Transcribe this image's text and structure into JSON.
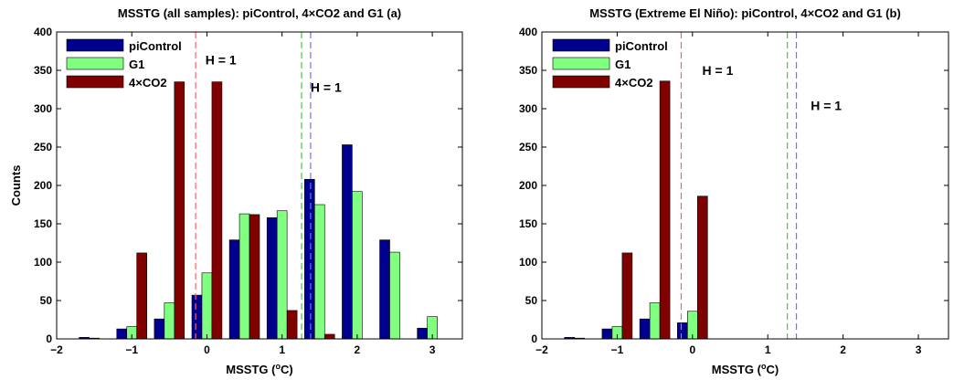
{
  "chart_data": [
    {
      "type": "bar",
      "title": "MSSTG (all samples): piControl, 4×CO2 and G1 (a)",
      "xlabel": "MSSTG (°C)",
      "ylabel": "Counts",
      "xlim": [
        -2,
        3.4
      ],
      "ylim": [
        0,
        400
      ],
      "xticks": [
        -2,
        -1,
        0,
        1,
        2,
        3
      ],
      "yticks": [
        0,
        50,
        100,
        150,
        200,
        250,
        300,
        350,
        400
      ],
      "legend": "top-left",
      "bin_width": 0.5,
      "series": [
        {
          "name": "piControl",
          "color": "#00008f",
          "x": [
            -1.5,
            -1.0,
            -0.5,
            0.0,
            0.5,
            1.0,
            1.5,
            2.0,
            2.5,
            3.0
          ],
          "values": [
            2,
            13,
            26,
            57,
            129,
            158,
            208,
            253,
            129,
            14
          ]
        },
        {
          "name": "G1",
          "color": "#80ff80",
          "x": [
            -1.5,
            -1.0,
            -0.5,
            0.0,
            0.5,
            1.0,
            1.5,
            2.0,
            2.5,
            3.0
          ],
          "values": [
            1,
            16,
            47,
            86,
            163,
            167,
            175,
            192,
            113,
            29
          ]
        },
        {
          "name": "4×CO2",
          "color": "#800000",
          "x": [
            -1.5,
            -1.0,
            -0.5,
            0.0,
            0.5,
            1.0,
            1.5,
            2.0,
            2.5,
            3.0
          ],
          "values": [
            0,
            112,
            335,
            335,
            162,
            37,
            6,
            0,
            0,
            0
          ]
        }
      ],
      "vlines": [
        {
          "x": -0.15,
          "color": "#ff6060"
        },
        {
          "x": 1.26,
          "color": "#40cc40"
        },
        {
          "x": 1.38,
          "color": "#7070ff"
        }
      ],
      "annotations": [
        {
          "text": "H = 1",
          "x": -0.02,
          "y": 358
        },
        {
          "text": "H = 1",
          "x": 1.38,
          "y": 322
        }
      ]
    },
    {
      "type": "bar",
      "title": "MSSTG (Extreme El Niño): piControl, 4×CO2 and G1 (b)",
      "xlabel": "MSSTG (°C)",
      "ylabel": "",
      "xlim": [
        -2,
        3.4
      ],
      "ylim": [
        0,
        400
      ],
      "xticks": [
        -2,
        -1,
        0,
        1,
        2,
        3
      ],
      "yticks": [
        0,
        50,
        100,
        150,
        200,
        250,
        300,
        350,
        400
      ],
      "legend": "top-left",
      "bin_width": 0.5,
      "series": [
        {
          "name": "piControl",
          "color": "#00008f",
          "x": [
            -1.5,
            -1.0,
            -0.5,
            0.0
          ],
          "values": [
            2,
            13,
            26,
            21
          ]
        },
        {
          "name": "G1",
          "color": "#80ff80",
          "x": [
            -1.5,
            -1.0,
            -0.5,
            0.0
          ],
          "values": [
            1,
            16,
            47,
            36
          ]
        },
        {
          "name": "4×CO2",
          "color": "#800000",
          "x": [
            -1.5,
            -1.0,
            -0.5,
            0.0
          ],
          "values": [
            0,
            112,
            336,
            186
          ]
        }
      ],
      "vlines": [
        {
          "x": -0.15,
          "color": "#ff6060"
        },
        {
          "x": 1.26,
          "color": "#40cc40"
        },
        {
          "x": 1.38,
          "color": "#7070ff"
        }
      ],
      "annotations": [
        {
          "text": "H = 1",
          "x": 0.13,
          "y": 344
        },
        {
          "text": "H = 1",
          "x": 1.57,
          "y": 298
        }
      ]
    }
  ]
}
